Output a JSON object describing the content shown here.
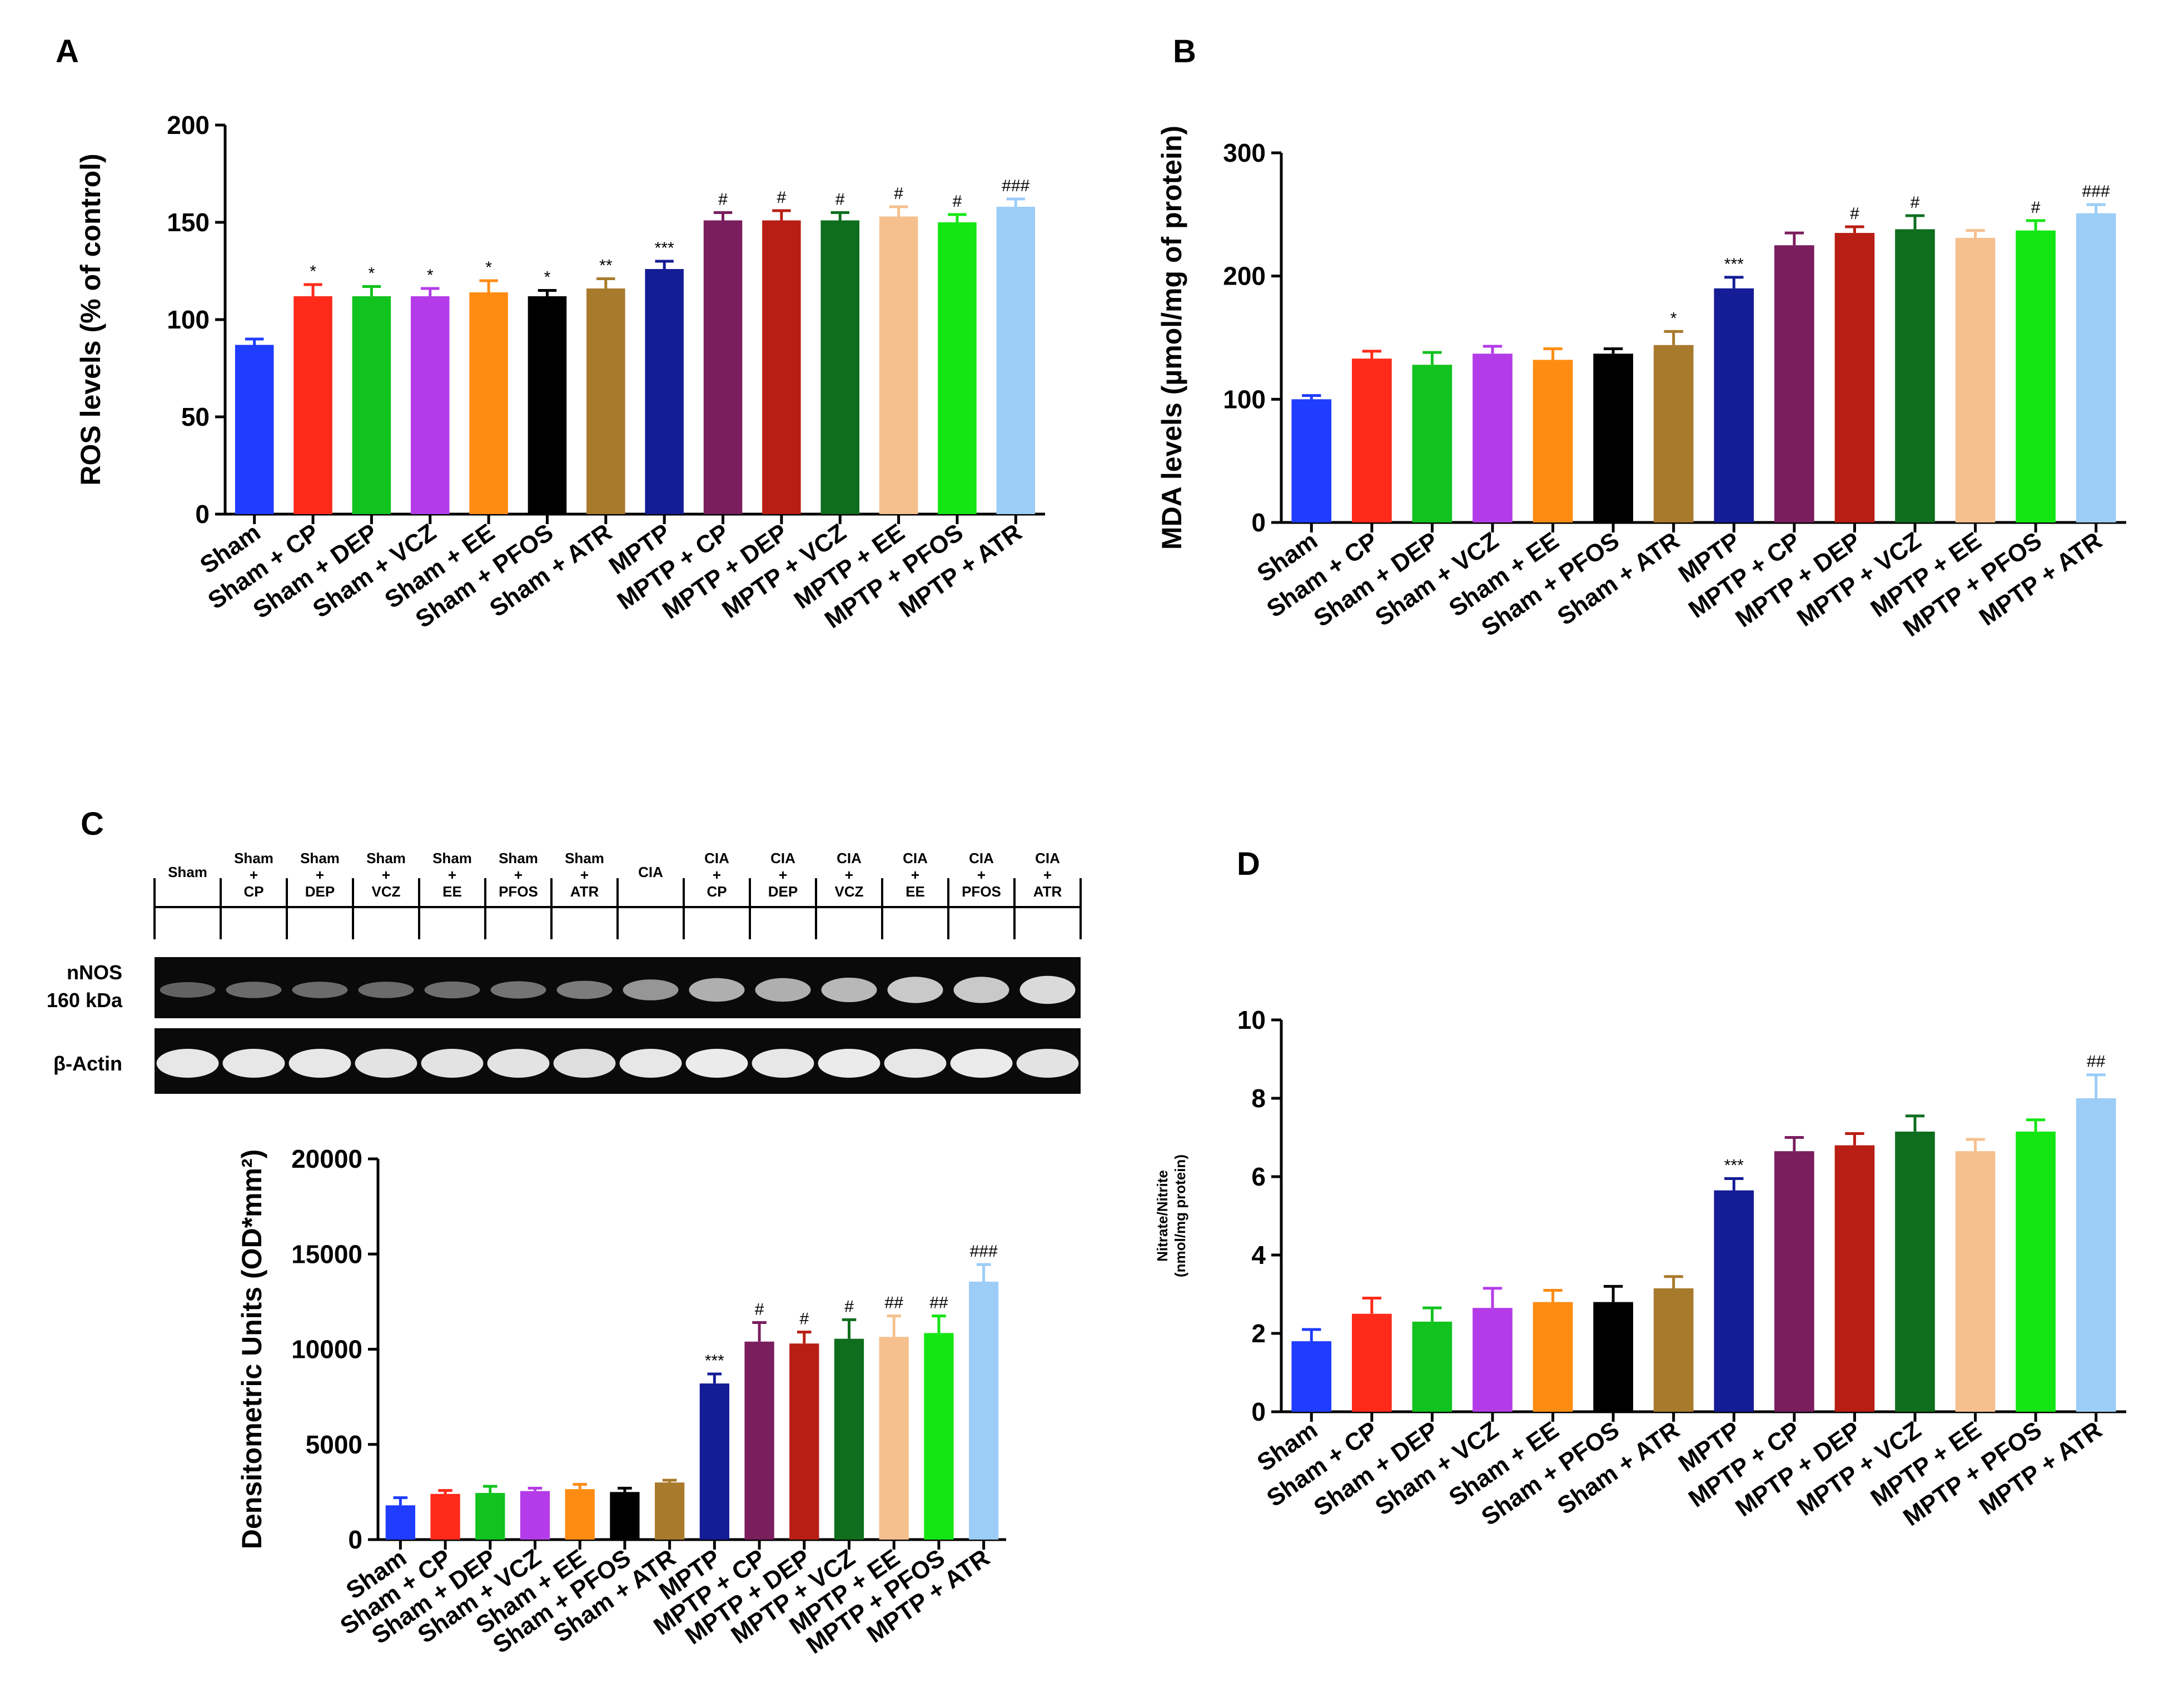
{
  "panels": [
    "A",
    "B",
    "C",
    "D"
  ],
  "blot": {
    "lanes": [
      [
        "Sham"
      ],
      [
        "Sham",
        "+",
        "CP"
      ],
      [
        "Sham",
        "+",
        "DEP"
      ],
      [
        "Sham",
        "+",
        "VCZ"
      ],
      [
        "Sham",
        "+",
        "EE"
      ],
      [
        "Sham",
        "+",
        "PFOS"
      ],
      [
        "Sham",
        "+",
        "ATR"
      ],
      [
        "CIA"
      ],
      [
        "CIA",
        "+",
        "CP"
      ],
      [
        "CIA",
        "+",
        "DEP"
      ],
      [
        "CIA",
        "+",
        "VCZ"
      ],
      [
        "CIA",
        "+",
        "EE"
      ],
      [
        "CIA",
        "+",
        "PFOS"
      ],
      [
        "CIA",
        "+",
        "ATR"
      ]
    ],
    "band_label_1": "nNOS",
    "band_label_1b": "160 kDa",
    "band_label_2": "β-Actin",
    "nnos_intensity": [
      0.25,
      0.3,
      0.3,
      0.3,
      0.32,
      0.35,
      0.4,
      0.55,
      0.7,
      0.7,
      0.75,
      0.85,
      0.85,
      0.95
    ],
    "actin_intensity": [
      0.9,
      0.9,
      0.9,
      0.88,
      0.88,
      0.88,
      0.85,
      0.9,
      0.92,
      0.9,
      0.92,
      0.9,
      0.92,
      0.88
    ]
  },
  "chart_data": [
    {
      "panel": "A",
      "type": "bar",
      "title": "",
      "ylabel": "ROS levels (% of control)",
      "ylim": [
        0,
        200
      ],
      "yticks": [
        0,
        50,
        100,
        150,
        200
      ],
      "categories": [
        "Sham",
        "Sham + CP",
        "Sham + DEP",
        "Sham + VCZ",
        "Sham + EE",
        "Sham + PFOS",
        "Sham + ATR",
        "MPTP",
        "MPTP + CP",
        "MPTP + DEP",
        "MPTP + VCZ",
        "MPTP + EE",
        "MPTP + PFOS",
        "MPTP + ATR"
      ],
      "values": [
        87,
        112,
        112,
        112,
        114,
        112,
        116,
        126,
        151,
        151,
        151,
        153,
        150,
        158
      ],
      "errors": [
        3,
        6,
        5,
        4,
        6,
        3,
        5,
        4,
        4,
        5,
        4,
        5,
        4,
        4
      ],
      "annotations": [
        "",
        "*",
        "*",
        "*",
        "*",
        "*",
        "**",
        "***",
        "#",
        "#",
        "#",
        "#",
        "#",
        "###"
      ],
      "colors": [
        "#1f3cff",
        "#ff2a1a",
        "#12c21e",
        "#b43ce8",
        "#ff8c12",
        "#000000",
        "#a87a2c",
        "#141c96",
        "#7a1e5e",
        "#b81e14",
        "#0e6e1e",
        "#f5c08e",
        "#14e614",
        "#9ccdf7"
      ]
    },
    {
      "panel": "B",
      "type": "bar",
      "title": "",
      "ylabel": "MDA levels (µmol/mg of protein)",
      "ylim": [
        0,
        300
      ],
      "yticks": [
        0,
        100,
        200,
        300
      ],
      "categories": [
        "Sham",
        "Sham + CP",
        "Sham + DEP",
        "Sham + VCZ",
        "Sham + EE",
        "Sham + PFOS",
        "Sham + ATR",
        "MPTP",
        "MPTP + CP",
        "MPTP + DEP",
        "MPTP + VCZ",
        "MPTP + EE",
        "MPTP + PFOS",
        "MPTP + ATR"
      ],
      "values": [
        100,
        133,
        128,
        137,
        132,
        137,
        144,
        190,
        225,
        235,
        238,
        231,
        237,
        251
      ],
      "errors": [
        3,
        6,
        10,
        6,
        9,
        4,
        11,
        9,
        10,
        5,
        11,
        6,
        8,
        7
      ],
      "annotations": [
        "",
        "",
        "",
        "",
        "",
        "",
        "*",
        "***",
        "",
        "#",
        "#",
        "",
        "#",
        "###"
      ],
      "colors": [
        "#1f3cff",
        "#ff2a1a",
        "#12c21e",
        "#b43ce8",
        "#ff8c12",
        "#000000",
        "#a87a2c",
        "#141c96",
        "#7a1e5e",
        "#b81e14",
        "#0e6e1e",
        "#f5c08e",
        "#14e614",
        "#9ccdf7"
      ]
    },
    {
      "panel": "C",
      "type": "bar",
      "title": "",
      "ylabel": "Densitometric Units (OD*mm²)",
      "ylim": [
        0,
        20000
      ],
      "yticks": [
        0,
        5000,
        10000,
        15000,
        20000
      ],
      "categories": [
        "Sham",
        "Sham + CP",
        "Sham + DEP",
        "Sham + VCZ",
        "Sham + EE",
        "Sham + PFOS",
        "Sham + ATR",
        "MPTP",
        "MPTP + CP",
        "MPTP + DEP",
        "MPTP + VCZ",
        "MPTP + EE",
        "MPTP + PFOS",
        "MPTP + ATR"
      ],
      "values": [
        1800,
        2400,
        2450,
        2550,
        2650,
        2500,
        3000,
        8200,
        10400,
        10300,
        10550,
        10650,
        10850,
        13550
      ],
      "errors": [
        400,
        180,
        350,
        150,
        250,
        200,
        120,
        500,
        1000,
        600,
        1000,
        1100,
        900,
        900
      ],
      "annotations": [
        "",
        "",
        "",
        "",
        "",
        "",
        "",
        "***",
        "#",
        "#",
        "#",
        "##",
        "##",
        "###"
      ],
      "colors": [
        "#1f3cff",
        "#ff2a1a",
        "#12c21e",
        "#b43ce8",
        "#ff8c12",
        "#000000",
        "#a87a2c",
        "#141c96",
        "#7a1e5e",
        "#b81e14",
        "#0e6e1e",
        "#f5c08e",
        "#14e614",
        "#9ccdf7"
      ]
    },
    {
      "panel": "D",
      "type": "bar",
      "title": "",
      "ylabel": "Nitrate/Nitrite",
      "ylabel2": "(nmol/mg protein)",
      "ylim": [
        0,
        10
      ],
      "yticks": [
        0,
        2,
        4,
        6,
        8,
        10
      ],
      "categories": [
        "Sham",
        "Sham + CP",
        "Sham + DEP",
        "Sham + VCZ",
        "Sham + EE",
        "Sham + PFOS",
        "Sham + ATR",
        "MPTP",
        "MPTP + CP",
        "MPTP + DEP",
        "MPTP + VCZ",
        "MPTP + EE",
        "MPTP + PFOS",
        "MPTP + ATR"
      ],
      "values": [
        1.8,
        2.5,
        2.3,
        2.65,
        2.8,
        2.8,
        3.15,
        5.65,
        6.65,
        6.8,
        7.15,
        6.65,
        7.15,
        8.0
      ],
      "errors": [
        0.3,
        0.4,
        0.35,
        0.5,
        0.3,
        0.4,
        0.3,
        0.3,
        0.35,
        0.3,
        0.4,
        0.3,
        0.3,
        0.6
      ],
      "annotations": [
        "",
        "",
        "",
        "",
        "",
        "",
        "",
        "***",
        "",
        "",
        "",
        "",
        "",
        "##"
      ],
      "colors": [
        "#1f3cff",
        "#ff2a1a",
        "#12c21e",
        "#b43ce8",
        "#ff8c12",
        "#000000",
        "#a87a2c",
        "#141c96",
        "#7a1e5e",
        "#b81e14",
        "#0e6e1e",
        "#f5c08e",
        "#14e614",
        "#9ccdf7"
      ]
    }
  ]
}
